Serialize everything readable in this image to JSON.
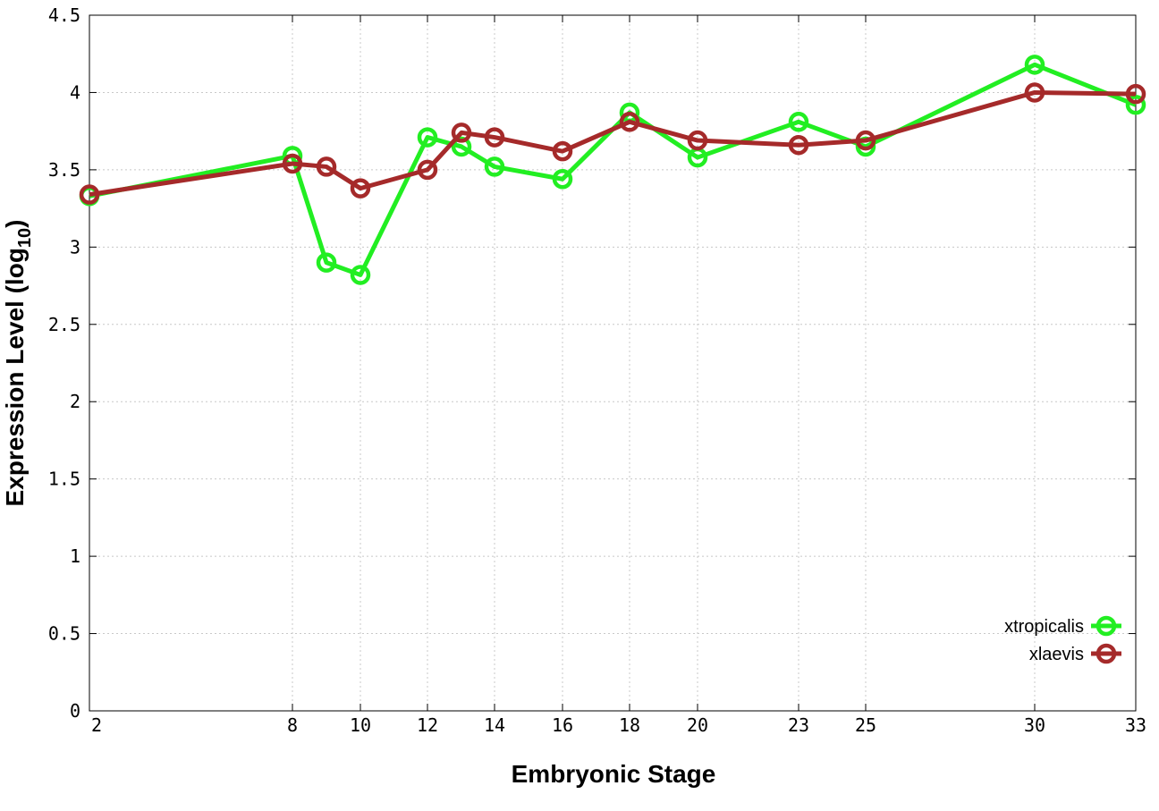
{
  "chart_data": {
    "type": "line",
    "xlabel": "Embryonic Stage",
    "ylabel_main": "Expression Level (log",
    "ylabel_sub": "10",
    "ylabel_close": ")",
    "x_tick_labels": [
      "2",
      "8",
      "10",
      "12",
      "14",
      "16",
      "18",
      "20",
      "23",
      "25",
      "30",
      "33"
    ],
    "y_tick_labels": [
      "0",
      "0.5",
      "1",
      "1.5",
      "2",
      "2.5",
      "3",
      "3.5",
      "4",
      "4.5"
    ],
    "ylim": [
      0,
      4.5
    ],
    "grid": true,
    "legend_position": "bottom-right",
    "series": [
      {
        "name": "xtropicalis",
        "color": "#22ee22",
        "points": [
          {
            "x": 2,
            "y": 3.33
          },
          {
            "x": 8,
            "y": 3.59
          },
          {
            "x": 9,
            "y": 2.9
          },
          {
            "x": 10,
            "y": 2.82
          },
          {
            "x": 12,
            "y": 3.71
          },
          {
            "x": 13,
            "y": 3.65
          },
          {
            "x": 14,
            "y": 3.52
          },
          {
            "x": 16,
            "y": 3.44
          },
          {
            "x": 18,
            "y": 3.87
          },
          {
            "x": 20,
            "y": 3.58
          },
          {
            "x": 23,
            "y": 3.81
          },
          {
            "x": 25,
            "y": 3.65
          },
          {
            "x": 30,
            "y": 4.18
          },
          {
            "x": 33,
            "y": 3.92
          }
        ]
      },
      {
        "name": "xlaevis",
        "color": "#a52a2a",
        "points": [
          {
            "x": 2,
            "y": 3.34
          },
          {
            "x": 8,
            "y": 3.54
          },
          {
            "x": 9,
            "y": 3.52
          },
          {
            "x": 10,
            "y": 3.38
          },
          {
            "x": 12,
            "y": 3.5
          },
          {
            "x": 13,
            "y": 3.74
          },
          {
            "x": 14,
            "y": 3.71
          },
          {
            "x": 16,
            "y": 3.62
          },
          {
            "x": 18,
            "y": 3.81
          },
          {
            "x": 20,
            "y": 3.69
          },
          {
            "x": 23,
            "y": 3.66
          },
          {
            "x": 25,
            "y": 3.69
          },
          {
            "x": 30,
            "y": 4.0
          },
          {
            "x": 33,
            "y": 3.99
          }
        ]
      }
    ]
  }
}
